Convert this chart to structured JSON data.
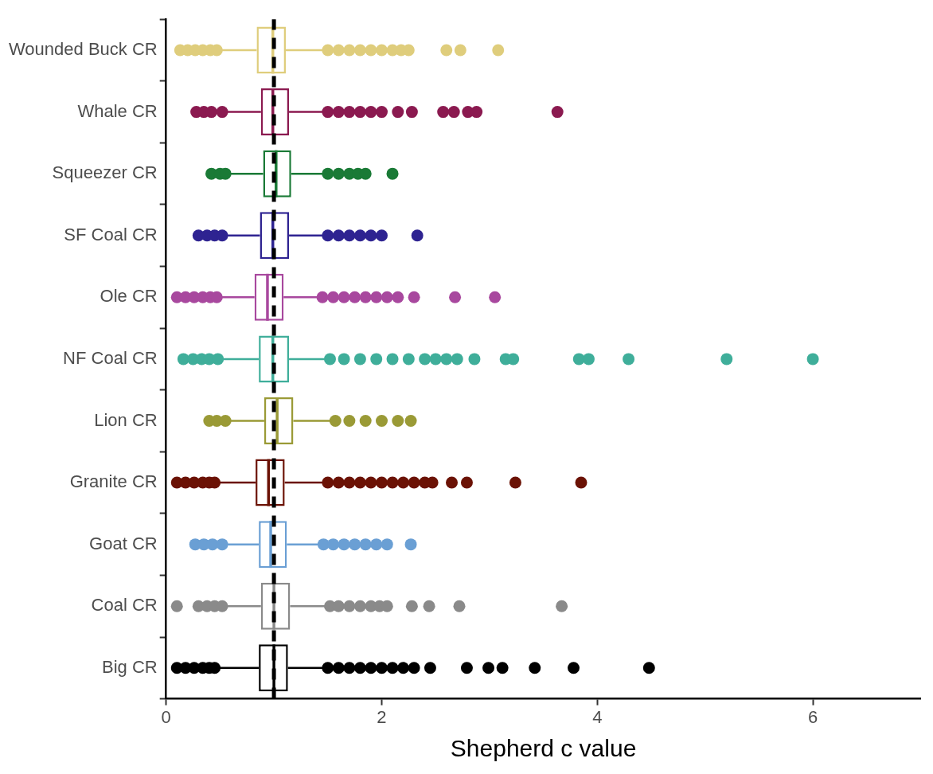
{
  "chart_data": {
    "type": "box",
    "orientation": "horizontal",
    "xlabel": "Shepherd c value",
    "categories": [
      "Wounded Buck CR",
      "Whale CR",
      "Squeezer CR",
      "SF Coal CR",
      "Ole CR",
      "NF Coal CR",
      "Lion CR",
      "Granite CR",
      "Goat CR",
      "Coal CR",
      "Big CR"
    ],
    "colors": [
      "#dfcd7c",
      "#8b1a50",
      "#1a7a36",
      "#2e2391",
      "#a8489e",
      "#3fae9a",
      "#9a9a36",
      "#6b1205",
      "#6a9fd4",
      "#8a8a8a",
      "#000000"
    ],
    "boxes": [
      {
        "low": 0.5,
        "q1": 0.84,
        "median": 0.99,
        "q3": 1.11,
        "high": 1.45,
        "outliers": [
          0.13,
          0.2,
          0.27,
          0.34,
          0.41,
          0.47,
          1.5,
          1.6,
          1.7,
          1.8,
          1.9,
          2.0,
          2.1,
          2.18,
          2.25,
          2.6,
          2.73,
          3.08
        ]
      },
      {
        "low": 0.55,
        "q1": 0.88,
        "median": 0.99,
        "q3": 1.14,
        "high": 1.46,
        "outliers": [
          0.28,
          0.35,
          0.42,
          0.52,
          1.5,
          1.6,
          1.7,
          1.8,
          1.9,
          2.0,
          2.15,
          2.28,
          2.57,
          2.67,
          2.8,
          2.88,
          3.63
        ]
      },
      {
        "low": 0.58,
        "q1": 0.9,
        "median": 1.02,
        "q3": 1.16,
        "high": 1.47,
        "outliers": [
          0.42,
          0.5,
          0.55,
          1.5,
          1.6,
          1.7,
          1.78,
          1.85,
          2.1
        ]
      },
      {
        "low": 0.55,
        "q1": 0.87,
        "median": 0.99,
        "q3": 1.14,
        "high": 1.45,
        "outliers": [
          0.3,
          0.38,
          0.45,
          0.52,
          1.5,
          1.6,
          1.7,
          1.8,
          1.9,
          2.0,
          2.33
        ]
      },
      {
        "low": 0.5,
        "q1": 0.82,
        "median": 0.94,
        "q3": 1.09,
        "high": 1.42,
        "outliers": [
          0.1,
          0.18,
          0.26,
          0.34,
          0.41,
          0.47,
          1.45,
          1.55,
          1.65,
          1.75,
          1.85,
          1.95,
          2.05,
          2.15,
          2.3,
          2.68,
          3.05
        ]
      },
      {
        "low": 0.51,
        "q1": 0.86,
        "median": 0.99,
        "q3": 1.14,
        "high": 1.49,
        "outliers": [
          0.16,
          0.25,
          0.33,
          0.4,
          0.48,
          1.52,
          1.65,
          1.8,
          1.95,
          2.1,
          2.25,
          2.4,
          2.5,
          2.6,
          2.7,
          2.86,
          3.15,
          3.22,
          3.83,
          3.92,
          4.29,
          5.2,
          6.0
        ]
      },
      {
        "low": 0.57,
        "q1": 0.91,
        "median": 1.03,
        "q3": 1.18,
        "high": 1.53,
        "outliers": [
          0.4,
          0.47,
          0.55,
          1.57,
          1.7,
          1.85,
          2.0,
          2.15,
          2.27
        ]
      },
      {
        "low": 0.47,
        "q1": 0.83,
        "median": 0.95,
        "q3": 1.1,
        "high": 1.46,
        "outliers": [
          0.1,
          0.18,
          0.26,
          0.34,
          0.4,
          0.45,
          1.5,
          1.6,
          1.7,
          1.8,
          1.9,
          2.0,
          2.1,
          2.2,
          2.3,
          2.4,
          2.47,
          2.65,
          2.79,
          3.24,
          3.85
        ]
      },
      {
        "low": 0.54,
        "q1": 0.86,
        "median": 0.97,
        "q3": 1.12,
        "high": 1.43,
        "outliers": [
          0.27,
          0.35,
          0.43,
          0.52,
          1.46,
          1.55,
          1.65,
          1.75,
          1.85,
          1.95,
          2.05,
          2.27
        ]
      },
      {
        "low": 0.54,
        "q1": 0.88,
        "median": 1.0,
        "q3": 1.15,
        "high": 1.49,
        "outliers": [
          0.1,
          0.3,
          0.38,
          0.45,
          0.52,
          1.52,
          1.6,
          1.7,
          1.8,
          1.9,
          1.98,
          2.05,
          2.28,
          2.44,
          2.72,
          3.67
        ]
      },
      {
        "low": 0.49,
        "q1": 0.86,
        "median": 1.0,
        "q3": 1.13,
        "high": 1.47,
        "outliers": [
          0.1,
          0.18,
          0.26,
          0.34,
          0.4,
          0.45,
          1.5,
          1.6,
          1.7,
          1.8,
          1.9,
          2.0,
          2.1,
          2.2,
          2.3,
          2.45,
          2.79,
          2.99,
          3.12,
          3.42,
          3.78,
          4.48
        ]
      }
    ],
    "xlim": [
      0,
      7
    ],
    "xticks": [
      0,
      2,
      4,
      6
    ],
    "ref_lines": [
      {
        "axis": "x",
        "value": 1,
        "color": "#000000",
        "line_style": "dashed"
      }
    ],
    "marker": "circle",
    "grid": false,
    "legend": false
  }
}
